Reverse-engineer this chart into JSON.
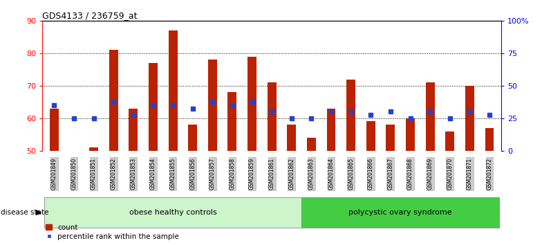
{
  "title": "GDS4133 / 236759_at",
  "samples": [
    "GSM201849",
    "GSM201850",
    "GSM201851",
    "GSM201852",
    "GSM201853",
    "GSM201854",
    "GSM201855",
    "GSM201856",
    "GSM201857",
    "GSM201858",
    "GSM201859",
    "GSM201861",
    "GSM201862",
    "GSM201863",
    "GSM201864",
    "GSM201865",
    "GSM201866",
    "GSM201867",
    "GSM201868",
    "GSM201869",
    "GSM201870",
    "GSM201871",
    "GSM201872"
  ],
  "red_values": [
    63,
    50,
    51,
    81,
    63,
    77,
    87,
    58,
    78,
    68,
    79,
    71,
    58,
    54,
    63,
    72,
    59,
    58,
    60,
    71,
    56,
    70,
    57
  ],
  "blue_values": [
    64,
    60,
    60,
    65,
    61,
    64,
    64,
    63,
    65,
    64,
    65,
    62,
    60,
    60,
    62,
    62,
    61,
    62,
    60,
    62,
    60,
    62,
    61
  ],
  "group1_count": 13,
  "group2_count": 10,
  "group1_label": "obese healthy controls",
  "group2_label": "polycystic ovary syndrome",
  "ylim_left": [
    50,
    90
  ],
  "ylim_right": [
    0,
    100
  ],
  "right_ticks": [
    0,
    25,
    50,
    75,
    100
  ],
  "right_tick_labels": [
    "0",
    "25",
    "50",
    "75",
    "100%"
  ],
  "left_ticks": [
    50,
    60,
    70,
    80,
    90
  ],
  "bar_color": "#bb2200",
  "blue_color": "#2244cc",
  "group1_bg": "#ccf5cc",
  "group2_bg": "#44cc44",
  "xticklabel_bg": "#cccccc",
  "bar_width": 0.45,
  "baseline": 50,
  "figsize": [
    7.84,
    3.54
  ],
  "dpi": 100
}
